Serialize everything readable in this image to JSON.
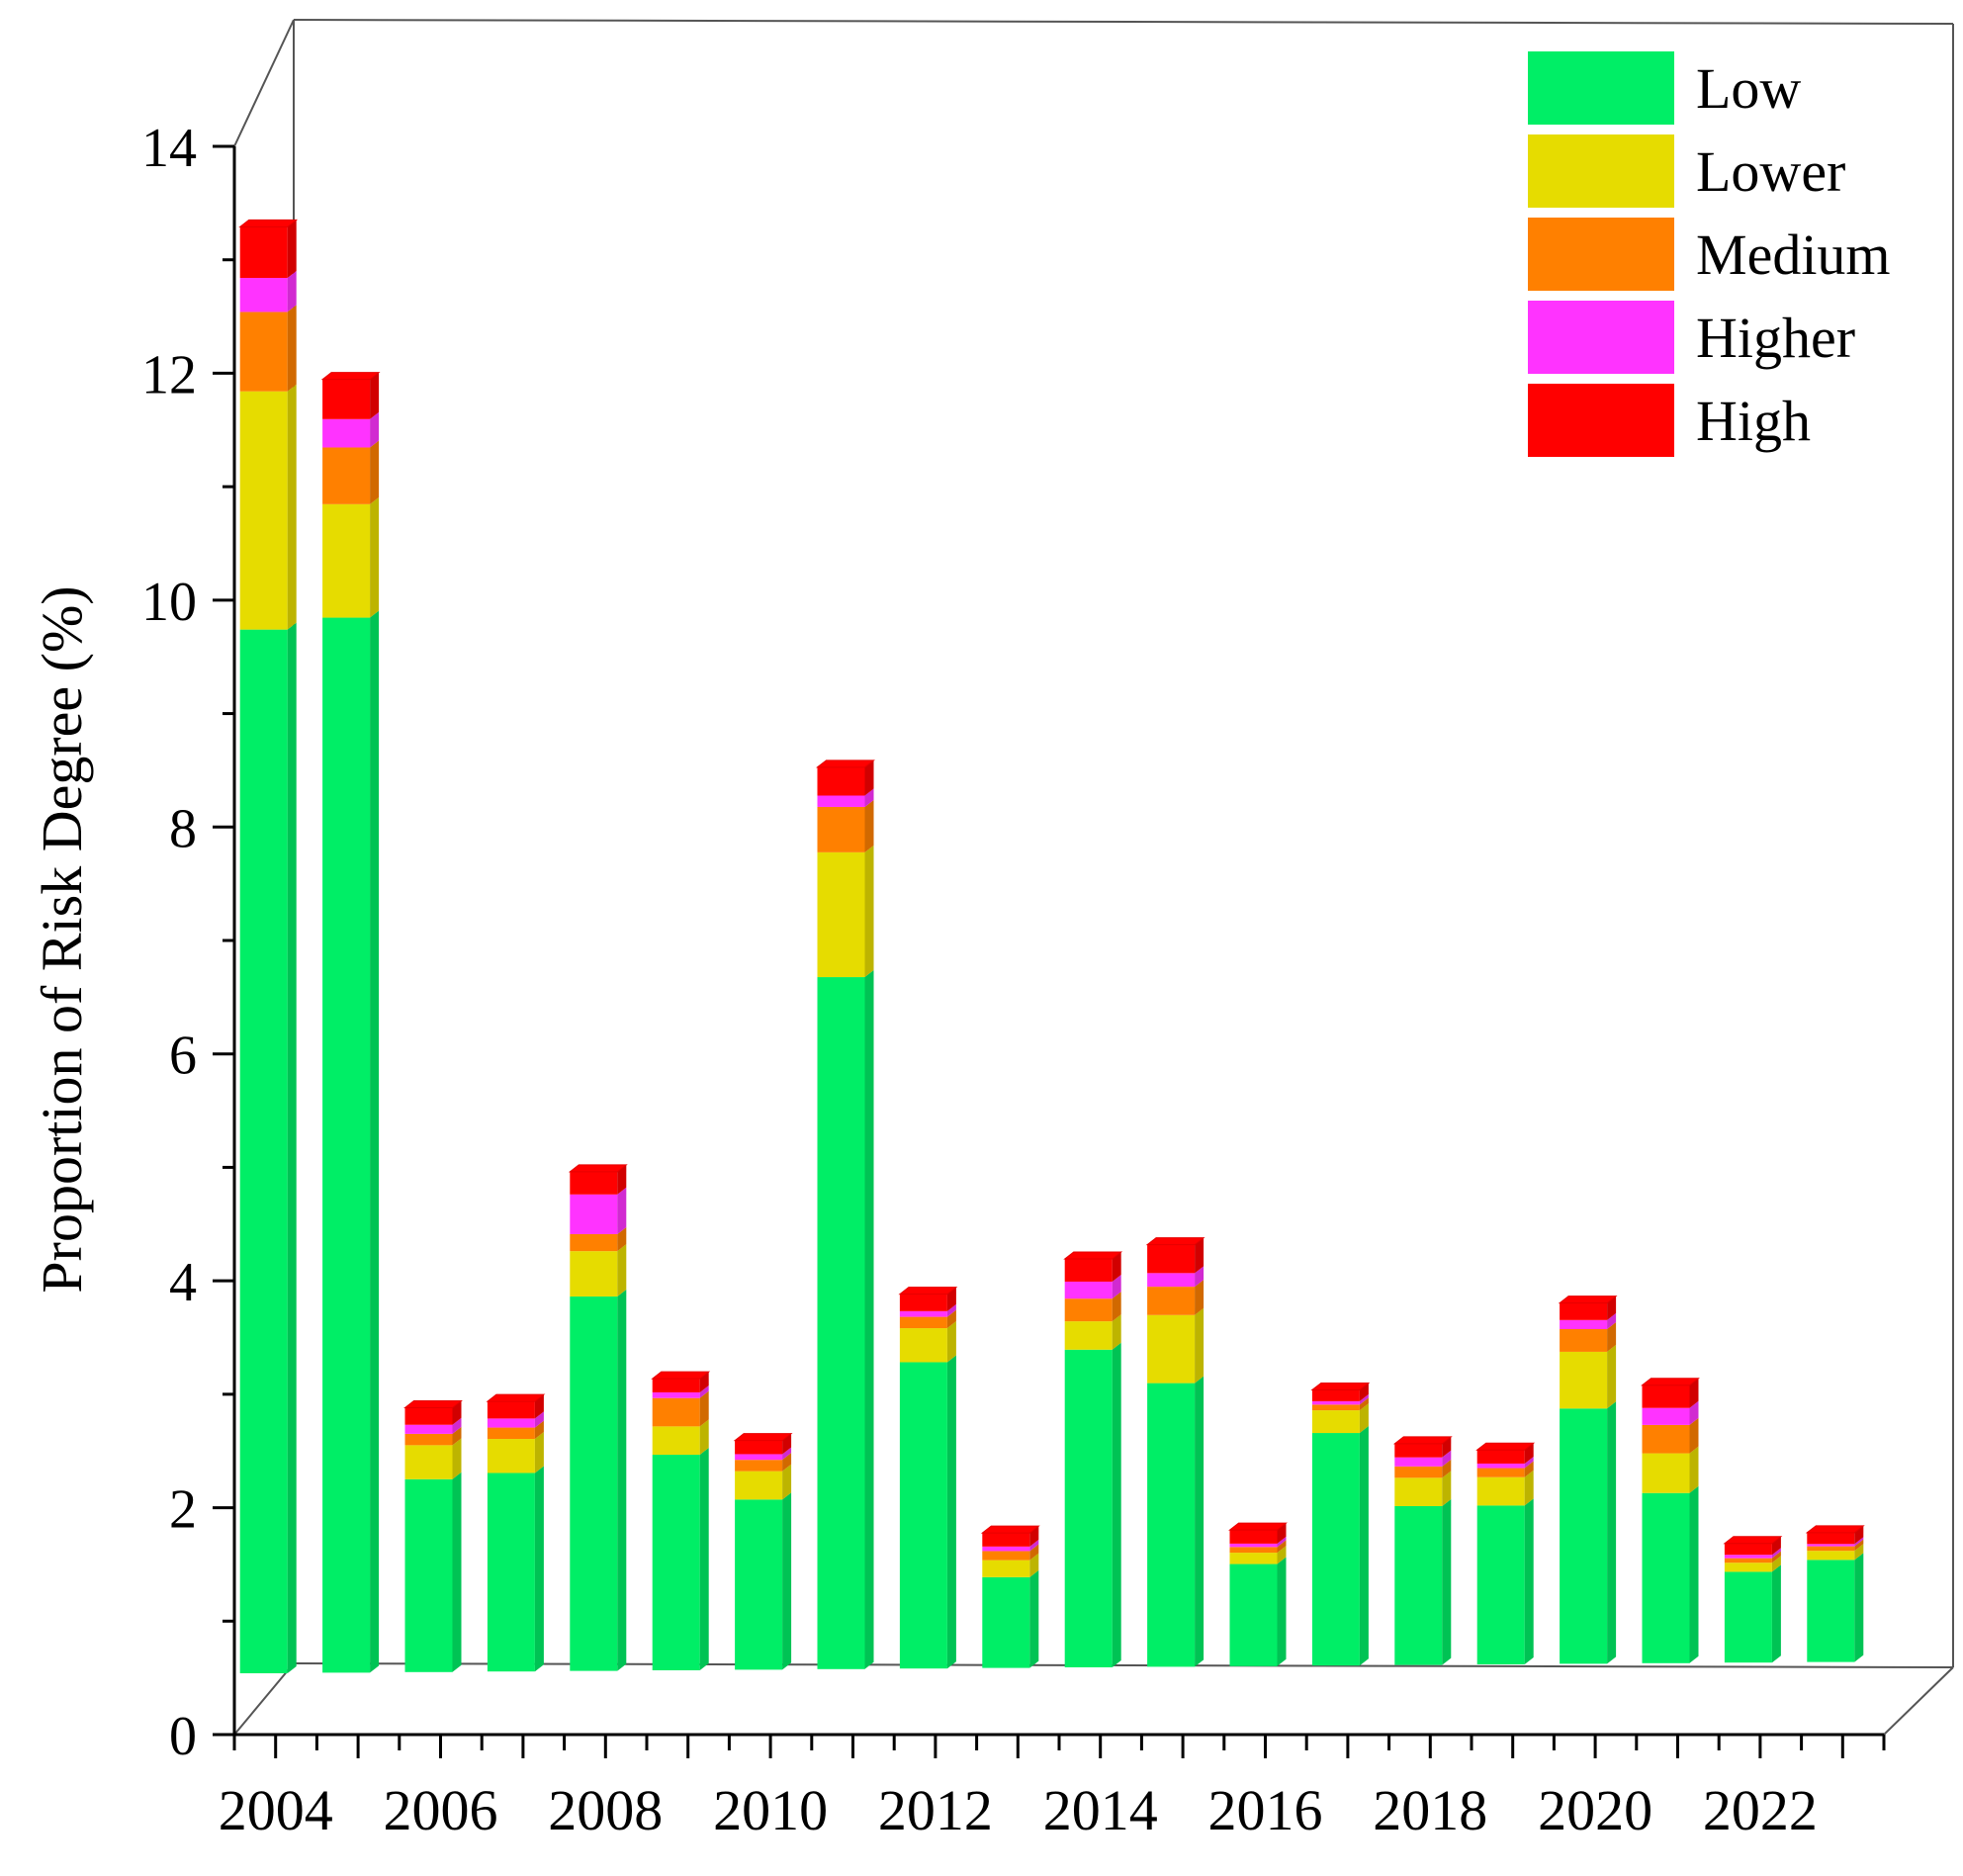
{
  "chart_data": {
    "type": "bar",
    "stacked": true,
    "style": "3d",
    "title": "",
    "xlabel": "",
    "ylabel": "Proportion of Risk Degree (%)",
    "ylim": [
      0,
      14
    ],
    "y_ticks": [
      0,
      2,
      4,
      6,
      8,
      10,
      12,
      14
    ],
    "categories": [
      "2004",
      "2005",
      "2006",
      "2007",
      "2008",
      "2009",
      "2010",
      "2011",
      "2012",
      "2013",
      "2014",
      "2015",
      "2016",
      "2017",
      "2018",
      "2019",
      "2020",
      "2021",
      "2022",
      "2023"
    ],
    "x_tick_labels": [
      "2004",
      "2006",
      "2008",
      "2010",
      "2012",
      "2014",
      "2016",
      "2018",
      "2020",
      "2022"
    ],
    "legend_position": "top-right",
    "series": [
      {
        "name": "Low",
        "color": "#00ee66",
        "values": [
          9.2,
          9.3,
          1.7,
          1.75,
          3.3,
          1.9,
          1.5,
          6.1,
          2.7,
          0.8,
          2.8,
          2.5,
          0.9,
          2.05,
          1.4,
          1.4,
          2.25,
          1.5,
          0.8,
          0.9
        ]
      },
      {
        "name": "Lower",
        "color": "#e6dc00",
        "values": [
          2.1,
          1.0,
          0.3,
          0.3,
          0.4,
          0.25,
          0.25,
          1.1,
          0.3,
          0.15,
          0.25,
          0.6,
          0.1,
          0.2,
          0.25,
          0.25,
          0.5,
          0.35,
          0.08,
          0.08
        ]
      },
      {
        "name": "Medium",
        "color": "#ff8000",
        "values": [
          0.7,
          0.5,
          0.1,
          0.1,
          0.15,
          0.25,
          0.1,
          0.4,
          0.1,
          0.08,
          0.2,
          0.25,
          0.05,
          0.05,
          0.1,
          0.08,
          0.2,
          0.25,
          0.04,
          0.04
        ]
      },
      {
        "name": "Higher",
        "color": "#ff33ff",
        "values": [
          0.3,
          0.25,
          0.08,
          0.08,
          0.35,
          0.05,
          0.05,
          0.1,
          0.05,
          0.04,
          0.15,
          0.12,
          0.03,
          0.03,
          0.08,
          0.04,
          0.08,
          0.15,
          0.03,
          0.02
        ]
      },
      {
        "name": "High",
        "color": "#ff0000",
        "values": [
          0.45,
          0.35,
          0.15,
          0.15,
          0.2,
          0.12,
          0.12,
          0.25,
          0.15,
          0.12,
          0.2,
          0.25,
          0.12,
          0.1,
          0.12,
          0.12,
          0.15,
          0.2,
          0.1,
          0.1
        ]
      }
    ]
  }
}
